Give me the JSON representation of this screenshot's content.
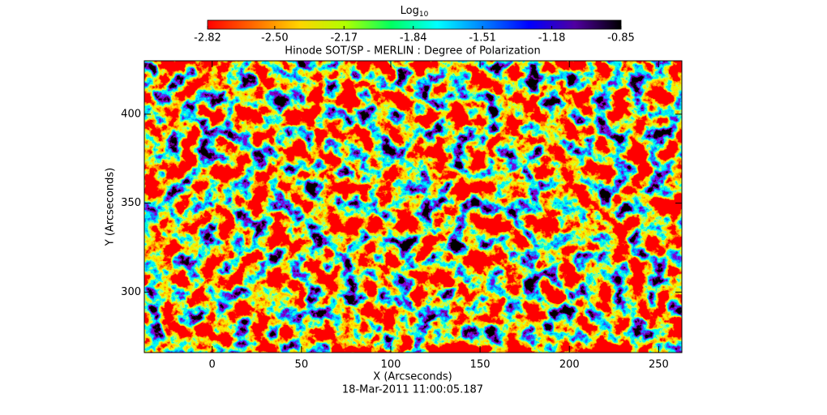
{
  "chart_data": {
    "type": "heatmap",
    "title": "Hinode SOT/SP - MERLIN : Degree of Polarization",
    "xlabel": "X (Arcseconds)",
    "ylabel": "Y (Arcseconds)",
    "footnote": "18-Mar-2011 11:00:05.187",
    "xlim": [
      -38,
      263
    ],
    "xticks": [
      0,
      50,
      100,
      150,
      200,
      250
    ],
    "ylim": [
      266,
      430
    ],
    "yticks": [
      300,
      350,
      400
    ],
    "colorbar": {
      "label": "Log",
      "label_subscript": "10",
      "lim": [
        -2.82,
        -0.85
      ],
      "ticks": [
        -2.82,
        {
          "value": -2.5,
          "label": "-2.50"
        },
        -2.17,
        -1.84,
        -1.51,
        -1.18,
        -0.85
      ],
      "colormap": [
        "#ff0000",
        "#ff6a00",
        "#ffd400",
        "#b0ff00",
        "#00ff60",
        "#00ffff",
        "#0080ff",
        "#0000ff",
        "#5000a0",
        "#000000"
      ]
    }
  }
}
